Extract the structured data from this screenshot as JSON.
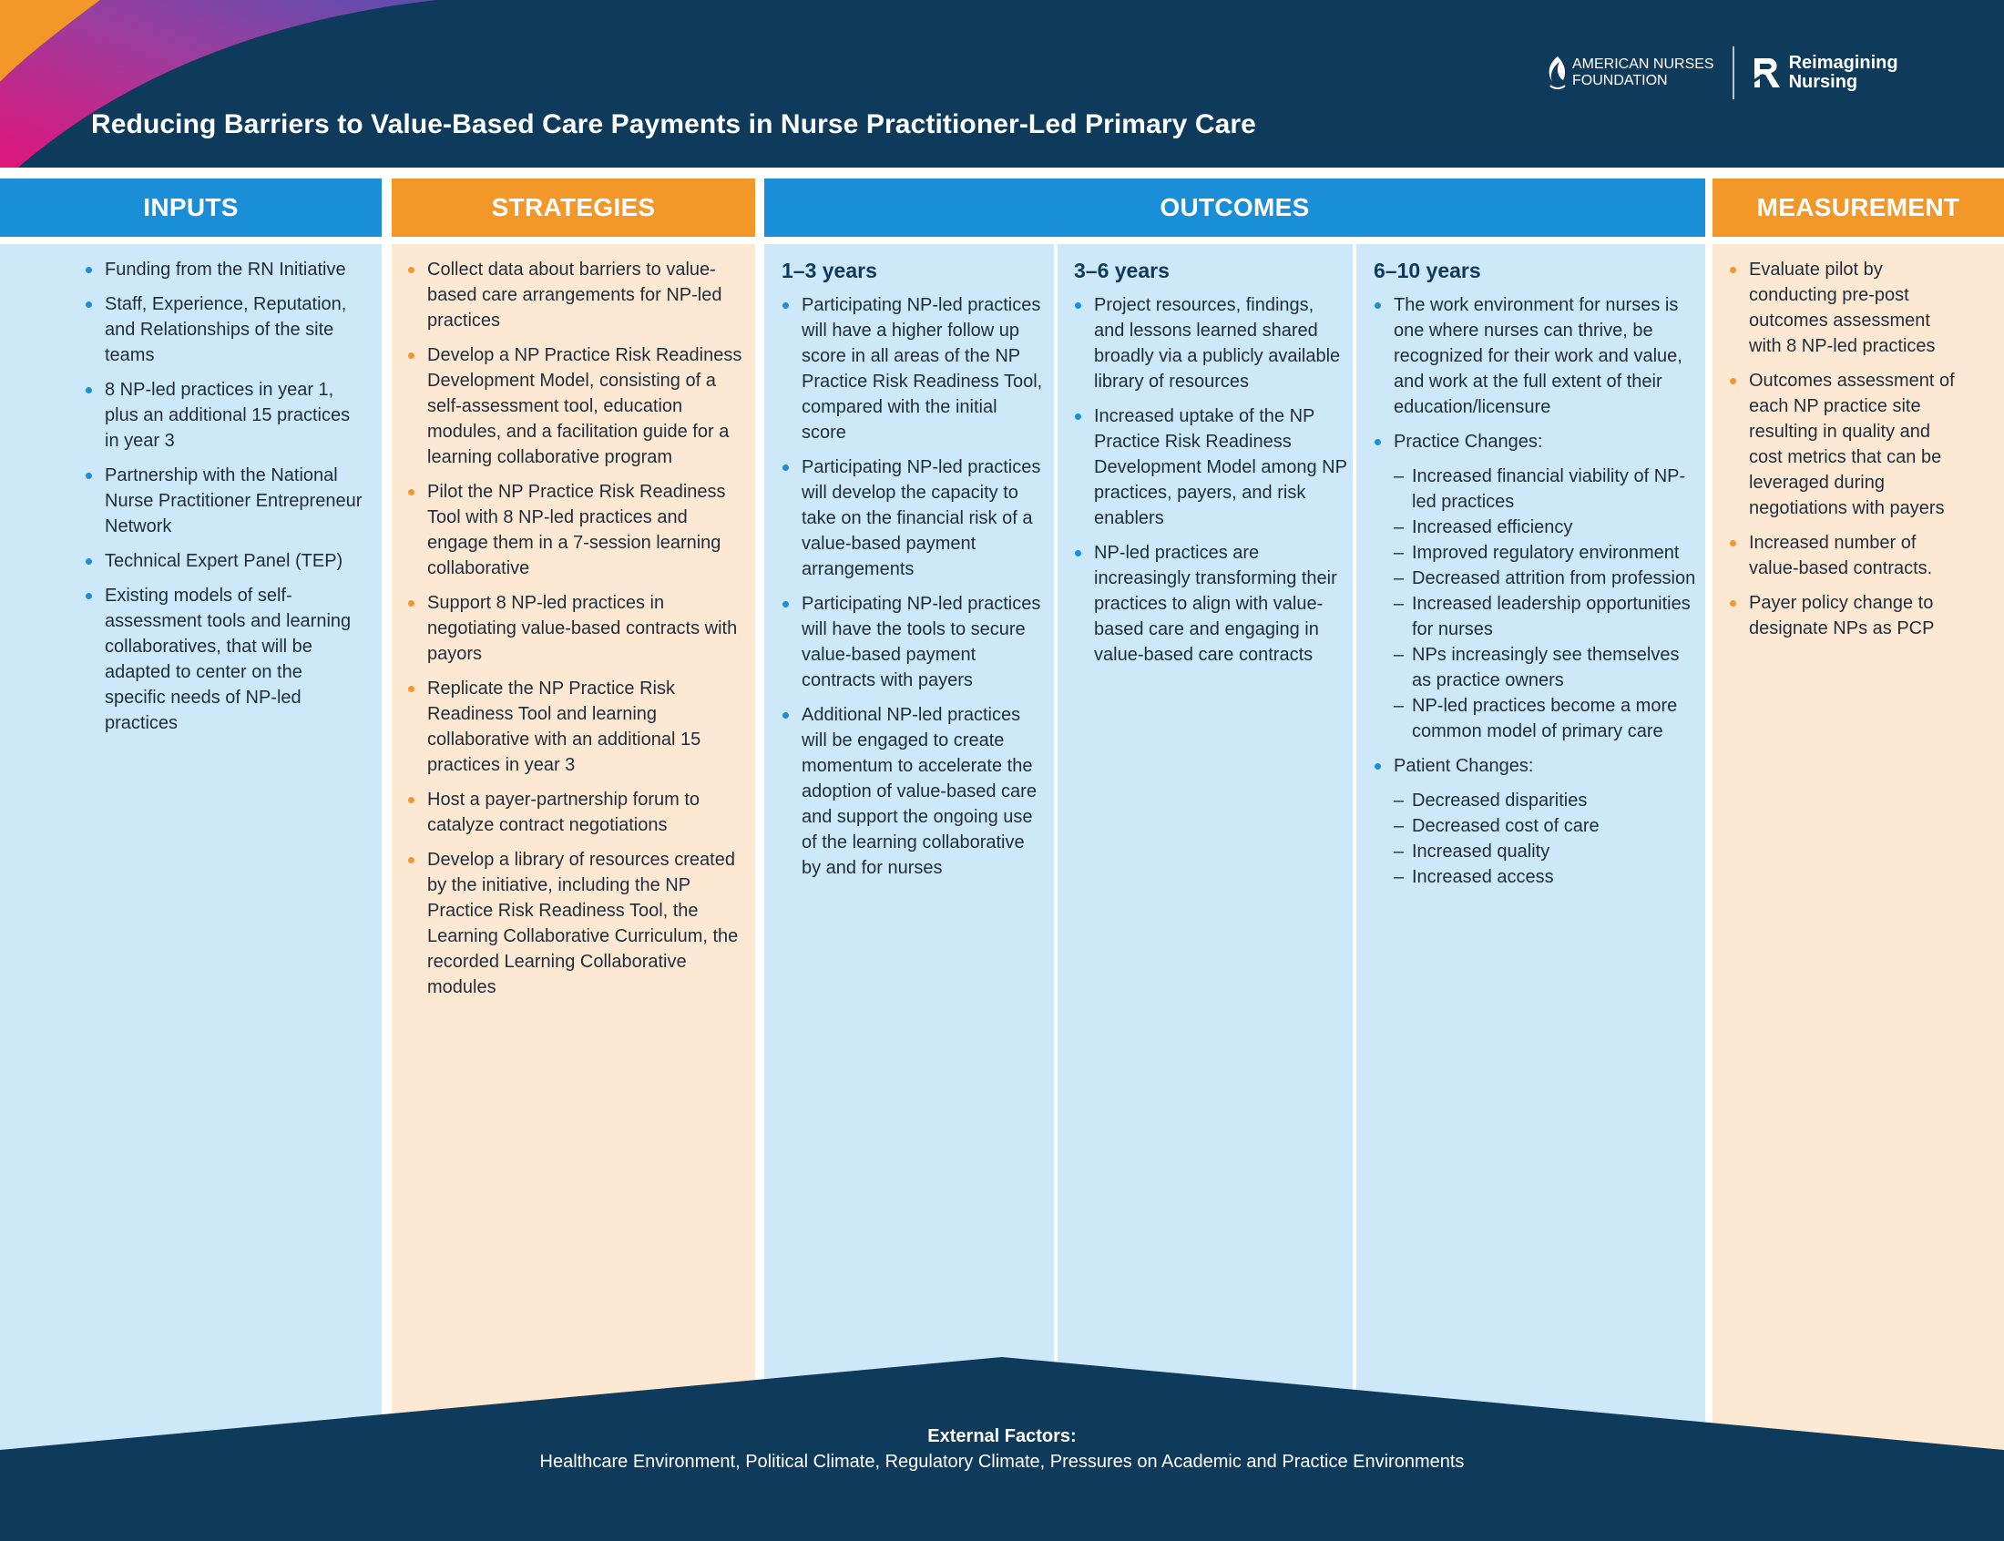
{
  "header": {
    "title": "Reducing Barriers to Value-Based Care Payments in Nurse Practitioner-Led Primary Care",
    "logo_ana_line1": "AMERICAN NURSES",
    "logo_ana_line2": "FOUNDATION",
    "logo_rn_line1": "Reimagining",
    "logo_rn_line2": "Nursing",
    "colors": {
      "navy": "#0e3a5c",
      "blue": "#1a8fd8",
      "orange": "#f29728",
      "light_blue": "#cde8f8",
      "light_orange": "#fde9d3"
    }
  },
  "columns": {
    "inputs": {
      "label": "INPUTS",
      "items": [
        "Funding from the RN Initiative",
        "Staff, Experience, Reputation, and Relationships of the site teams",
        "8 NP-led practices in year 1, plus an additional 15 practices in year 3",
        "Partnership with the National Nurse Practitioner Entrepreneur Network",
        "Technical Expert Panel (TEP)",
        "Existing models of self-assessment tools and learning collaboratives, that will be adapted to center on the specific needs of NP-led practices"
      ]
    },
    "strategies": {
      "label": "STRATEGIES",
      "items": [
        "Collect data about barriers to value-based care arrangements for NP-led practices",
        "Develop a NP Practice Risk Readiness Development Model, consisting of a self-assessment tool, education modules, and a facilitation guide for a learning collaborative program",
        "Pilot the NP Practice Risk Readiness Tool with 8 NP-led practices and engage them in a 7-session learning collaborative",
        "Support 8 NP-led practices in negotiating value-based contracts with payors",
        "Replicate the NP Practice Risk Readiness Tool and learning collaborative with an additional 15 practices in year 3",
        "Host a payer-partnership forum to catalyze contract negotiations",
        "Develop a library of resources created by the initiative, including the NP Practice Risk Readiness Tool, the Learning Collaborative Curriculum, the recorded Learning Collaborative modules"
      ]
    },
    "outcomes": {
      "label": "OUTCOMES",
      "short": {
        "label": "1–3 years",
        "items": [
          "Participating NP-led practices will have a higher follow up score in all areas of the NP Practice Risk Readiness Tool, compared with the initial score",
          "Participating NP-led practices will develop the capacity to take on the financial risk of a value-based payment arrangements",
          "Participating NP-led practices will have the tools to secure value-based payment contracts with payers",
          "Additional NP-led practices will be engaged to create momentum to accelerate the adoption of value-based care and support the ongoing use of the learning collaborative by and for nurses"
        ]
      },
      "mid": {
        "label": "3–6 years",
        "items": [
          "Project resources, findings, and lessons learned shared broadly via a publicly available library of resources",
          "Increased uptake of the NP Practice Risk Readiness Development Model among NP practices, payers, and risk enablers",
          "NP-led practices are increasingly transforming their practices to align with value-based care and engaging in value-based care contracts"
        ]
      },
      "long": {
        "label": "6–10 years",
        "item1": "The work environment for nurses is one where nurses can thrive, be recognized for their work and value, and work at the full extent of their education/licensure",
        "practice_label": "Practice Changes:",
        "practice_items": [
          "Increased financial viability of NP-led practices",
          "Increased efficiency",
          "Improved regulatory environment",
          "Decreased attrition from profession",
          "Increased leadership opportunities for nurses",
          "NPs increasingly see themselves as practice owners",
          "NP-led practices become a more common model of primary care"
        ],
        "patient_label": "Patient Changes:",
        "patient_items": [
          "Decreased disparities",
          "Decreased cost of care",
          "Increased quality",
          "Increased access"
        ]
      }
    },
    "measurement": {
      "label": "MEASUREMENT",
      "items": [
        "Evaluate pilot by conducting pre-post outcomes assessment with 8 NP-led practices",
        "Outcomes assessment of each NP practice site resulting in quality and cost metrics that can be leveraged during negotiations with payers",
        "Increased number of value-based contracts.",
        "Payer policy change to designate NPs as PCP"
      ]
    }
  },
  "footer": {
    "title": "External Factors:",
    "text": "Healthcare Environment, Political Climate, Regulatory Climate, Pressures on Academic and Practice Environments"
  }
}
